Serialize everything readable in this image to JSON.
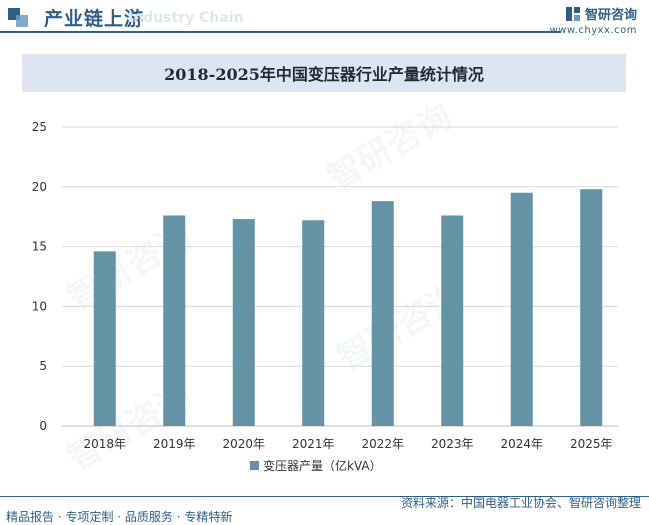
{
  "header": {
    "title": "产业链上游",
    "watermark": "Industry Chain",
    "brand_name": "智研咨询",
    "brand_url": "www.chyxx.com"
  },
  "footer": {
    "left": "精品报告 · 专项定制 · 品质服务 · 专精特新",
    "right": "资料来源：中国电器工业协会、智研咨询整理"
  },
  "watermark_text": "智研咨询",
  "colors": {
    "accent": "#2f5f86",
    "bar": "#6393a5",
    "title_bg": "#dde6f0"
  },
  "chart_data": {
    "type": "bar",
    "title": "2018-2025年中国变压器行业产量统计情况",
    "categories": [
      "2018年",
      "2019年",
      "2020年",
      "2021年",
      "2022年",
      "2023年",
      "2024年",
      "2025年"
    ],
    "series": [
      {
        "name": "变压器产量（亿kVA）",
        "values": [
          14.6,
          17.6,
          17.3,
          17.2,
          18.8,
          17.6,
          19.5,
          19.8
        ]
      }
    ],
    "yticks": [
      0,
      5,
      10,
      15,
      20,
      25
    ],
    "ylim": [
      0,
      25
    ],
    "grid": true,
    "legend": "bottom"
  }
}
